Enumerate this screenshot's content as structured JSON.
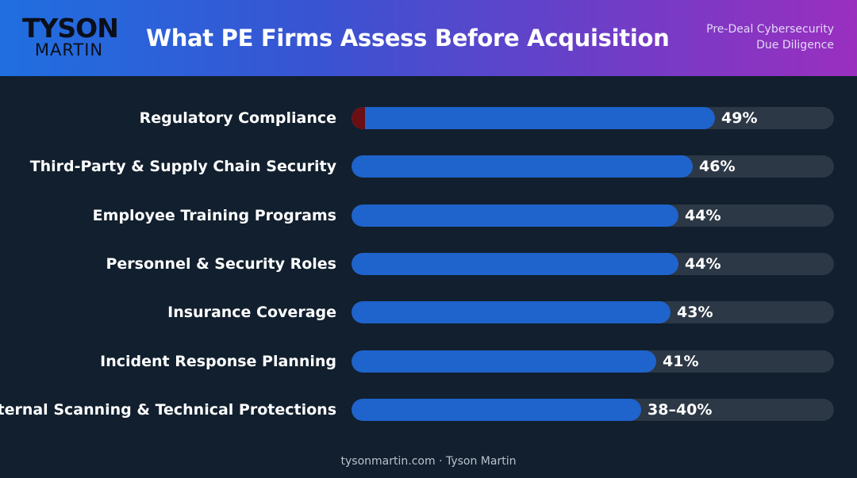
{
  "header": {
    "logo_top": "TYSON",
    "logo_bottom": "MARTIN",
    "title": "What PE Firms Assess Before Acquisition",
    "subtitle_line1": "Pre-Deal Cybersecurity",
    "subtitle_line2": "Due Diligence"
  },
  "colors": {
    "bar_fill": "#1f63cc",
    "bar_track": "#2c3845",
    "accent": "#6b0f14",
    "background": "#111f2e"
  },
  "chart_data": {
    "type": "bar",
    "orientation": "horizontal",
    "title": "What PE Firms Assess Before Acquisition",
    "xlim": [
      0,
      65
    ],
    "grid": false,
    "categories": [
      "Regulatory Compliance",
      "Third-Party & Supply Chain Security",
      "Employee Training Programs",
      "Personnel & Security Roles",
      "Insurance Coverage",
      "Incident Response Planning",
      "External Scanning & Technical Protections"
    ],
    "values": [
      49,
      46,
      44,
      44,
      43,
      41,
      39
    ],
    "value_labels": [
      "49%",
      "46%",
      "44%",
      "44%",
      "43%",
      "41%",
      "38–40%"
    ],
    "highlight_accent": [
      true,
      false,
      false,
      false,
      false,
      false,
      false
    ]
  },
  "footer": {
    "text": "tysonmartin.com · Tyson Martin"
  }
}
